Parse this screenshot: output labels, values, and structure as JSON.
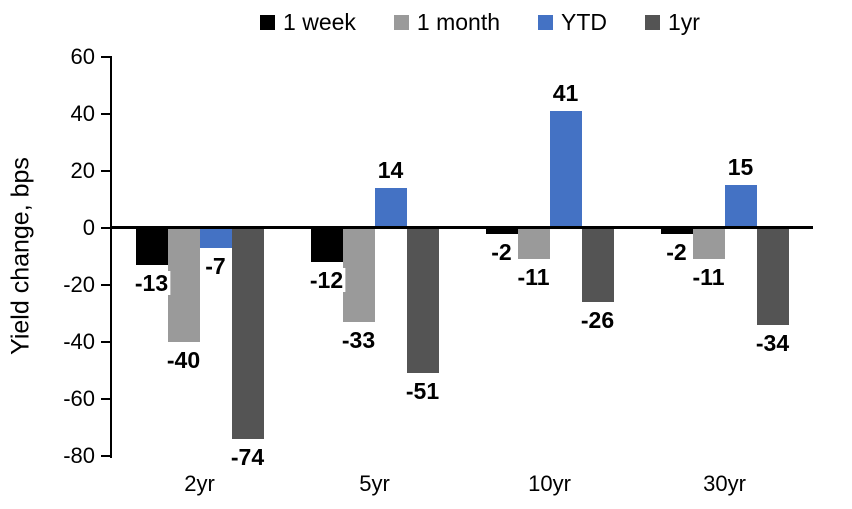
{
  "chart_data": {
    "type": "bar",
    "title": "",
    "xlabel": "",
    "ylabel": "Yield change, bps",
    "categories": [
      "2yr",
      "5yr",
      "10yr",
      "30yr"
    ],
    "series": [
      {
        "name": "1 week",
        "color": "#000000",
        "values": [
          -13,
          -12,
          -2,
          -2
        ]
      },
      {
        "name": "1 month",
        "color": "#9A9A9A",
        "values": [
          -40,
          -33,
          -11,
          -11
        ]
      },
      {
        "name": "YTD",
        "color": "#4472C4",
        "values": [
          -7,
          14,
          41,
          15
        ]
      },
      {
        "name": "1yr",
        "color": "#545454",
        "values": [
          -74,
          -51,
          -26,
          -34
        ]
      }
    ],
    "ylim": [
      -80,
      60
    ],
    "yticks": [
      60,
      40,
      20,
      0,
      -20,
      -40,
      -60,
      -80
    ],
    "grid": false,
    "legend_position": "top",
    "value_labels": true,
    "axis_color": "#000000"
  }
}
